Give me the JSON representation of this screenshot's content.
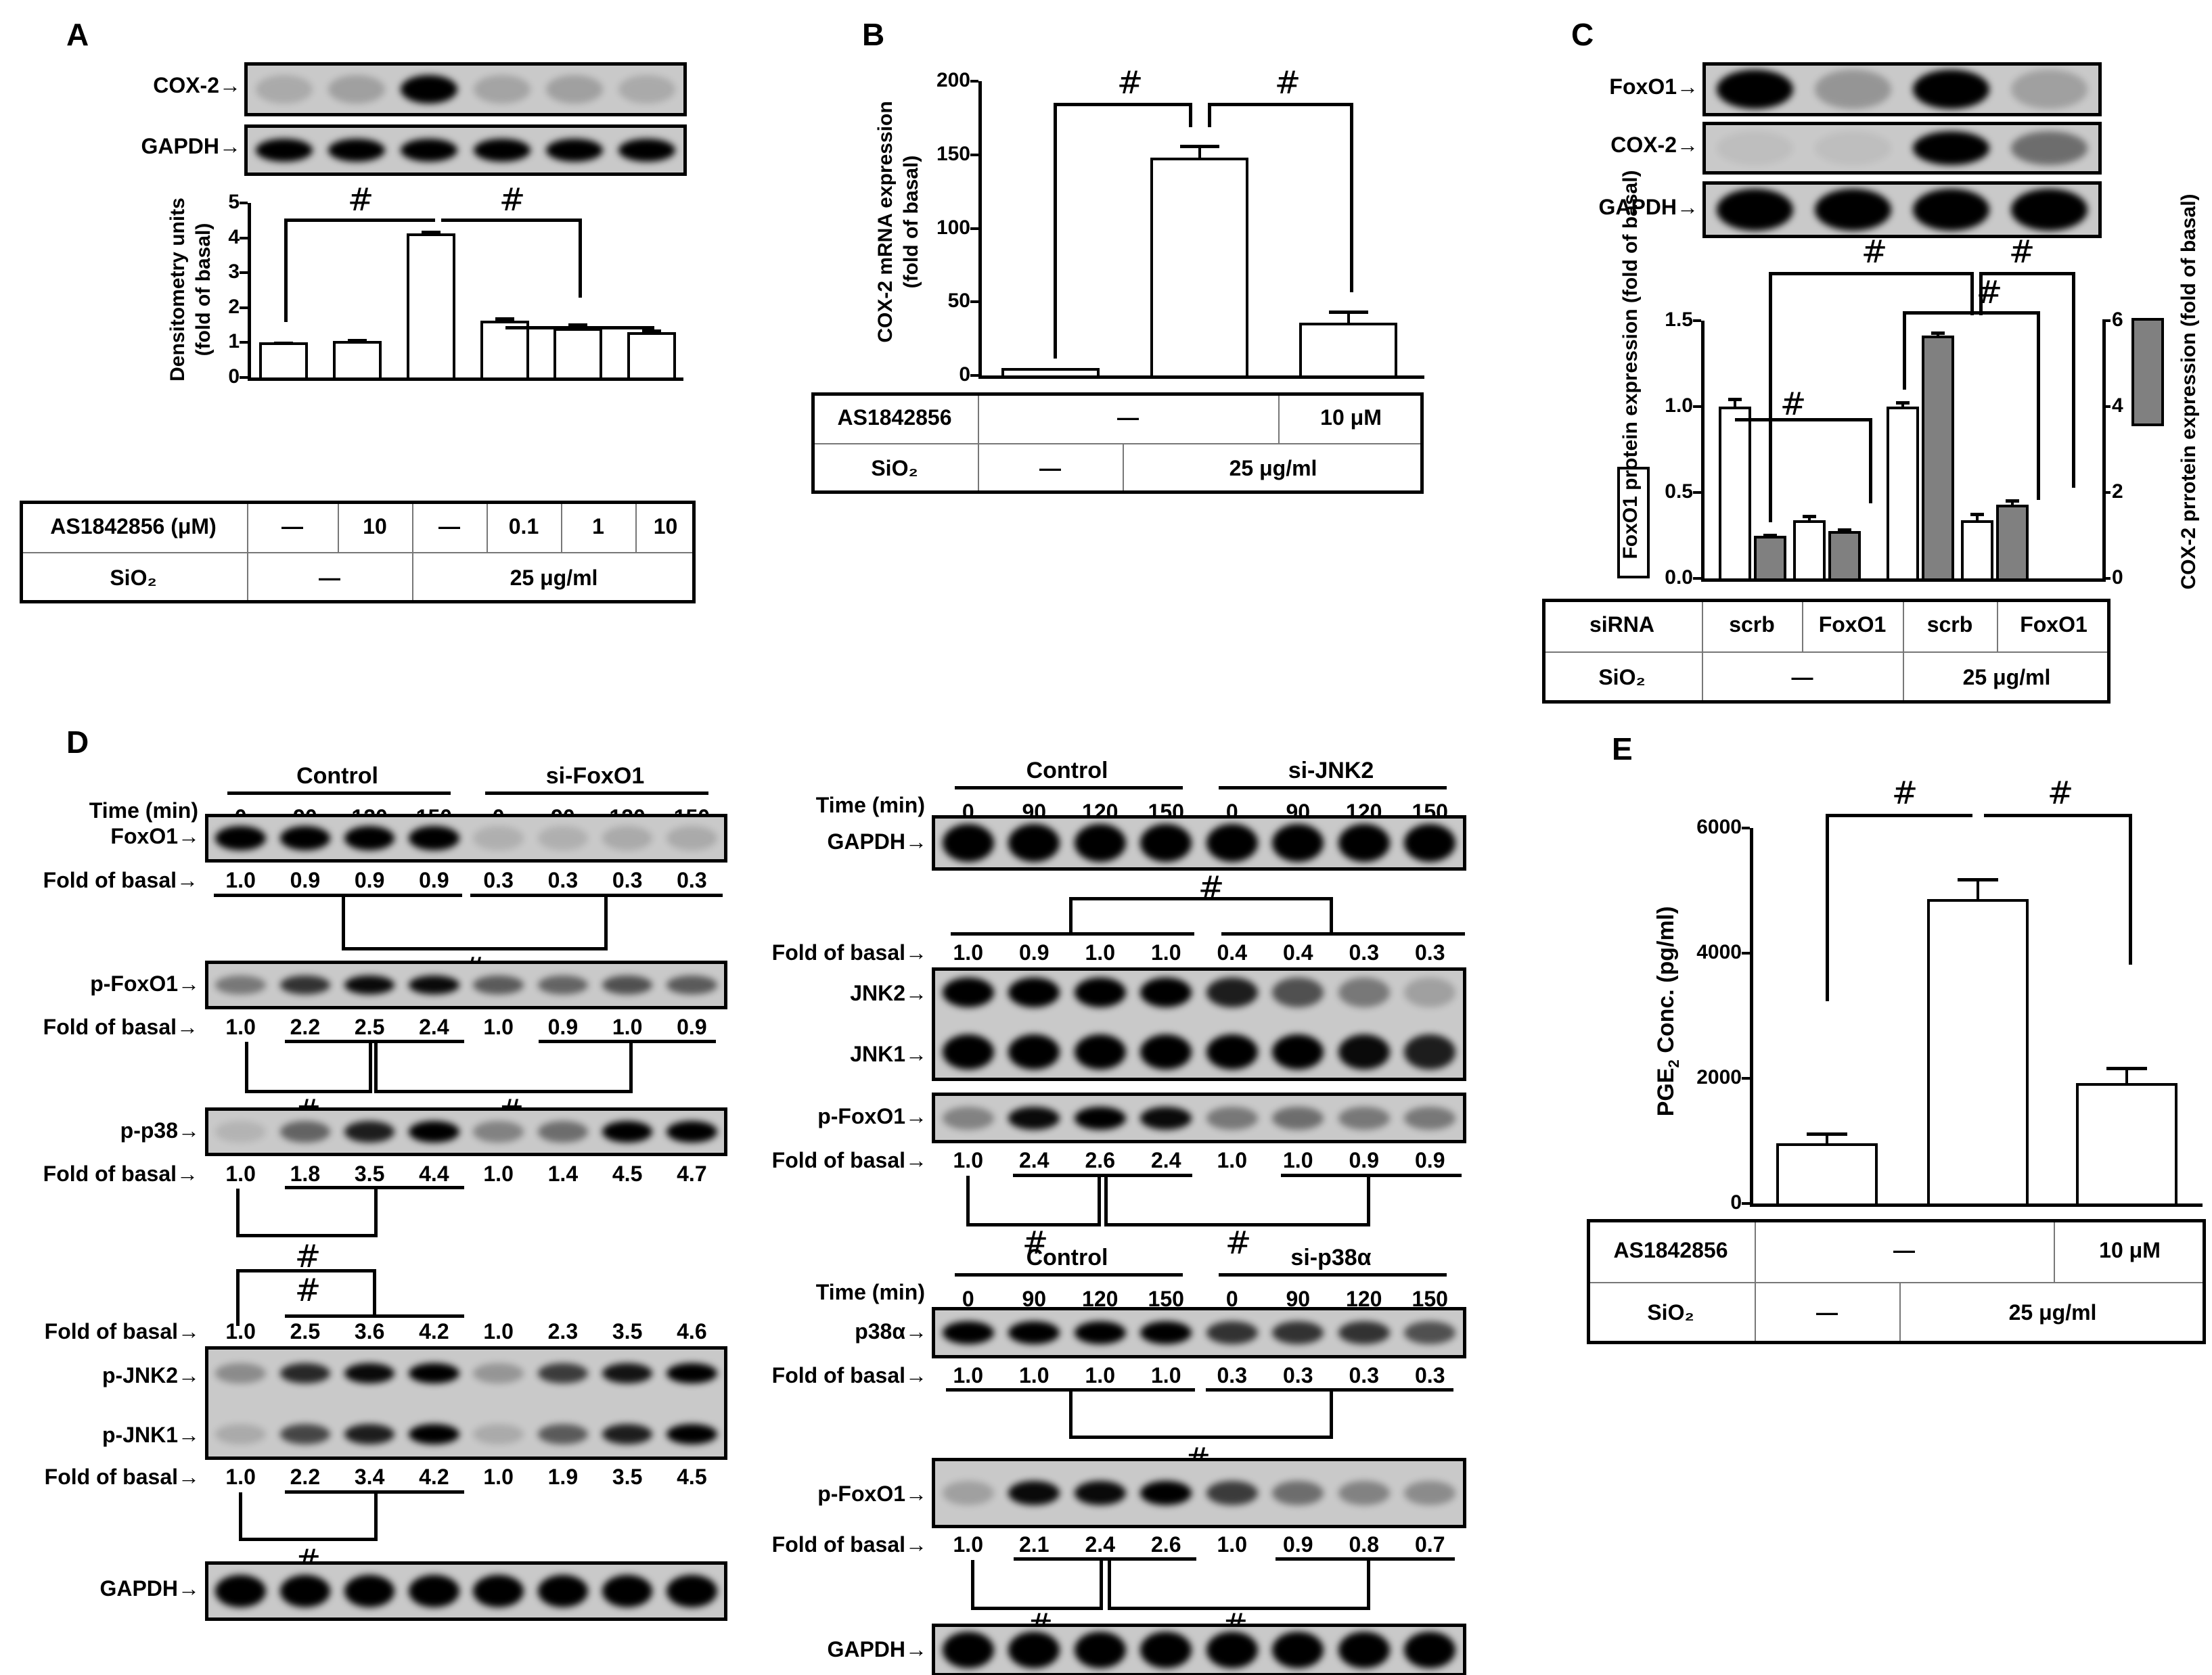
{
  "panels": {
    "A": {
      "label": "A",
      "blots": [
        {
          "name": "COX-2",
          "label": "COX-2→"
        },
        {
          "name": "GAPDH",
          "label": "GAPDH→"
        }
      ],
      "table": {
        "row1_label": "AS1842856 (μM)",
        "row1": [
          "—",
          "10",
          "—",
          "0.1",
          "1",
          "10"
        ],
        "row2_label": "SiO₂",
        "row2": [
          "—",
          "25 μg/ml"
        ]
      },
      "sig": "#"
    },
    "B": {
      "label": "B",
      "table": {
        "row1_label": "AS1842856",
        "row1": [
          "—",
          "10 μM"
        ],
        "row2_label": "SiO₂",
        "row2": [
          "—",
          "25 μg/ml"
        ]
      },
      "sig": "#"
    },
    "C": {
      "label": "C",
      "blots": [
        {
          "name": "FoxO1",
          "label": "FoxO1→"
        },
        {
          "name": "COX-2",
          "label": "COX-2→"
        },
        {
          "name": "GAPDH",
          "label": "GAPDH→"
        }
      ],
      "table": {
        "row1_label": "siRNA",
        "row1": [
          "scrb",
          "FoxO1",
          "scrb",
          "FoxO1"
        ],
        "row2_label": "SiO₂",
        "row2": [
          "—",
          "25 μg/ml"
        ]
      },
      "sig": "#"
    },
    "D": {
      "label": "D",
      "time_label": "Time (min)",
      "fold_label": "Fold of basal→",
      "times": [
        "0",
        "90",
        "120",
        "150",
        "0",
        "90",
        "120",
        "150"
      ],
      "left": {
        "groups": [
          "Control",
          "si-FoxO1"
        ],
        "blots": [
          {
            "name": "FoxO1",
            "label": "FoxO1→",
            "fold": [
              "1.0",
              "0.9",
              "0.9",
              "0.9",
              "0.3",
              "0.3",
              "0.3",
              "0.3"
            ]
          },
          {
            "name": "p-FoxO1",
            "label": "p-FoxO1→",
            "fold": [
              "1.0",
              "2.2",
              "2.5",
              "2.4",
              "1.0",
              "0.9",
              "1.0",
              "0.9"
            ]
          },
          {
            "name": "p-p38",
            "label": "p-p38→",
            "fold": [
              "1.0",
              "1.8",
              "3.5",
              "4.4",
              "1.0",
              "1.4",
              "4.5",
              "4.7"
            ]
          },
          {
            "name": "p-JNK",
            "label_top": "p-JNK2→",
            "label_bottom": "p-JNK1→",
            "fold_top": [
              "1.0",
              "2.5",
              "3.6",
              "4.2",
              "1.0",
              "2.3",
              "3.5",
              "4.6"
            ],
            "fold_bottom": [
              "1.0",
              "2.2",
              "3.4",
              "4.2",
              "1.0",
              "1.9",
              "3.5",
              "4.5"
            ]
          },
          {
            "name": "GAPDH",
            "label": "GAPDH→"
          }
        ]
      },
      "right_jnk": {
        "groups": [
          "Control",
          "si-JNK2"
        ],
        "blots": [
          {
            "name": "GAPDH",
            "label": "GAPDH→"
          },
          {
            "name": "JNK",
            "label_top": "JNK2→",
            "label_bottom": "JNK1→",
            "fold": [
              "1.0",
              "0.9",
              "1.0",
              "1.0",
              "0.4",
              "0.4",
              "0.3",
              "0.3"
            ]
          },
          {
            "name": "p-FoxO1",
            "label": "p-FoxO1→",
            "fold": [
              "1.0",
              "2.4",
              "2.6",
              "2.4",
              "1.0",
              "1.0",
              "0.9",
              "0.9"
            ]
          }
        ]
      },
      "right_p38": {
        "groups": [
          "Control",
          "si-p38α"
        ],
        "blots": [
          {
            "name": "p38α",
            "label": "p38α→",
            "fold": [
              "1.0",
              "1.0",
              "1.0",
              "1.0",
              "0.3",
              "0.3",
              "0.3",
              "0.3"
            ]
          },
          {
            "name": "p-FoxO1",
            "label": "p-FoxO1→",
            "fold": [
              "1.0",
              "2.1",
              "2.4",
              "2.6",
              "1.0",
              "0.9",
              "0.8",
              "0.7"
            ]
          },
          {
            "name": "GAPDH",
            "label": "GAPDH→"
          }
        ]
      },
      "sig": "#"
    },
    "E": {
      "label": "E",
      "table": {
        "row1_label": "AS1842856",
        "row1": [
          "—",
          "10 μM"
        ],
        "row2_label": "SiO₂",
        "row2": [
          "—",
          "25 μg/ml"
        ]
      },
      "sig": "#"
    }
  },
  "chart_data": [
    {
      "panel": "A",
      "type": "bar",
      "title": "",
      "ylabel": "Densitometry units (fold of basal)",
      "categories": [
        "—/—",
        "10/—",
        "—/25",
        "0.1/25",
        "1/25",
        "10/25"
      ],
      "values": [
        1.0,
        1.05,
        4.12,
        1.62,
        1.42,
        1.3
      ],
      "errors": [
        0.03,
        0.05,
        0.08,
        0.1,
        0.13,
        0.08
      ],
      "yticks": [
        "0",
        "1",
        "2",
        "3",
        "4",
        "5"
      ],
      "ylim": [
        0,
        5
      ],
      "grid": false
    },
    {
      "panel": "B",
      "type": "bar",
      "title": "",
      "ylabel": "COX-2 mRNA expression (fold of basal)",
      "categories": [
        "control",
        "SiO2",
        "SiO2 + AS1842856"
      ],
      "values": [
        5,
        148,
        36
      ],
      "errors": [
        0,
        9,
        8
      ],
      "yticks": [
        "0",
        "50",
        "100",
        "150",
        "200"
      ],
      "ylim": [
        0,
        200
      ],
      "grid": false
    },
    {
      "panel": "C",
      "type": "bar",
      "title": "",
      "ylabel": "FoxO1 protein expression (fold of basal)",
      "ylabel_right": "COX-2 prrotein expression (fold of basal)",
      "categories": [
        "scrb/—",
        "FoxO1/—",
        "scrb/25 μg/ml",
        "FoxO1/25 μg/ml"
      ],
      "series": [
        {
          "name": "FoxO1",
          "color": "#ffffff",
          "axis": "left",
          "values": [
            1.0,
            0.34,
            1.0,
            0.34
          ],
          "errors": [
            0.05,
            0.03,
            0.03,
            0.04
          ]
        },
        {
          "name": "COX-2",
          "color": "#808080",
          "axis": "right",
          "values": [
            1.0,
            1.1,
            5.65,
            1.72
          ],
          "errors": [
            0.04,
            0.06,
            0.1,
            0.12
          ]
        }
      ],
      "yticks": [
        "0.0",
        "0.5",
        "1.0",
        "1.5"
      ],
      "ylim": [
        0,
        1.5
      ],
      "yticks_right": [
        "0",
        "2",
        "4",
        "6"
      ],
      "ylim_right": [
        0,
        6
      ],
      "grid": false
    },
    {
      "panel": "E",
      "type": "bar",
      "title": "",
      "ylabel": "PGE2 Conc. (pg/ml)",
      "categories": [
        "control",
        "SiO2",
        "SiO2 + AS1842856"
      ],
      "values": [
        960,
        4870,
        1920
      ],
      "errors": [
        170,
        330,
        260
      ],
      "yticks": [
        "0",
        "2000",
        "4000",
        "6000"
      ],
      "ylim": [
        0,
        6000
      ],
      "grid": false
    }
  ]
}
